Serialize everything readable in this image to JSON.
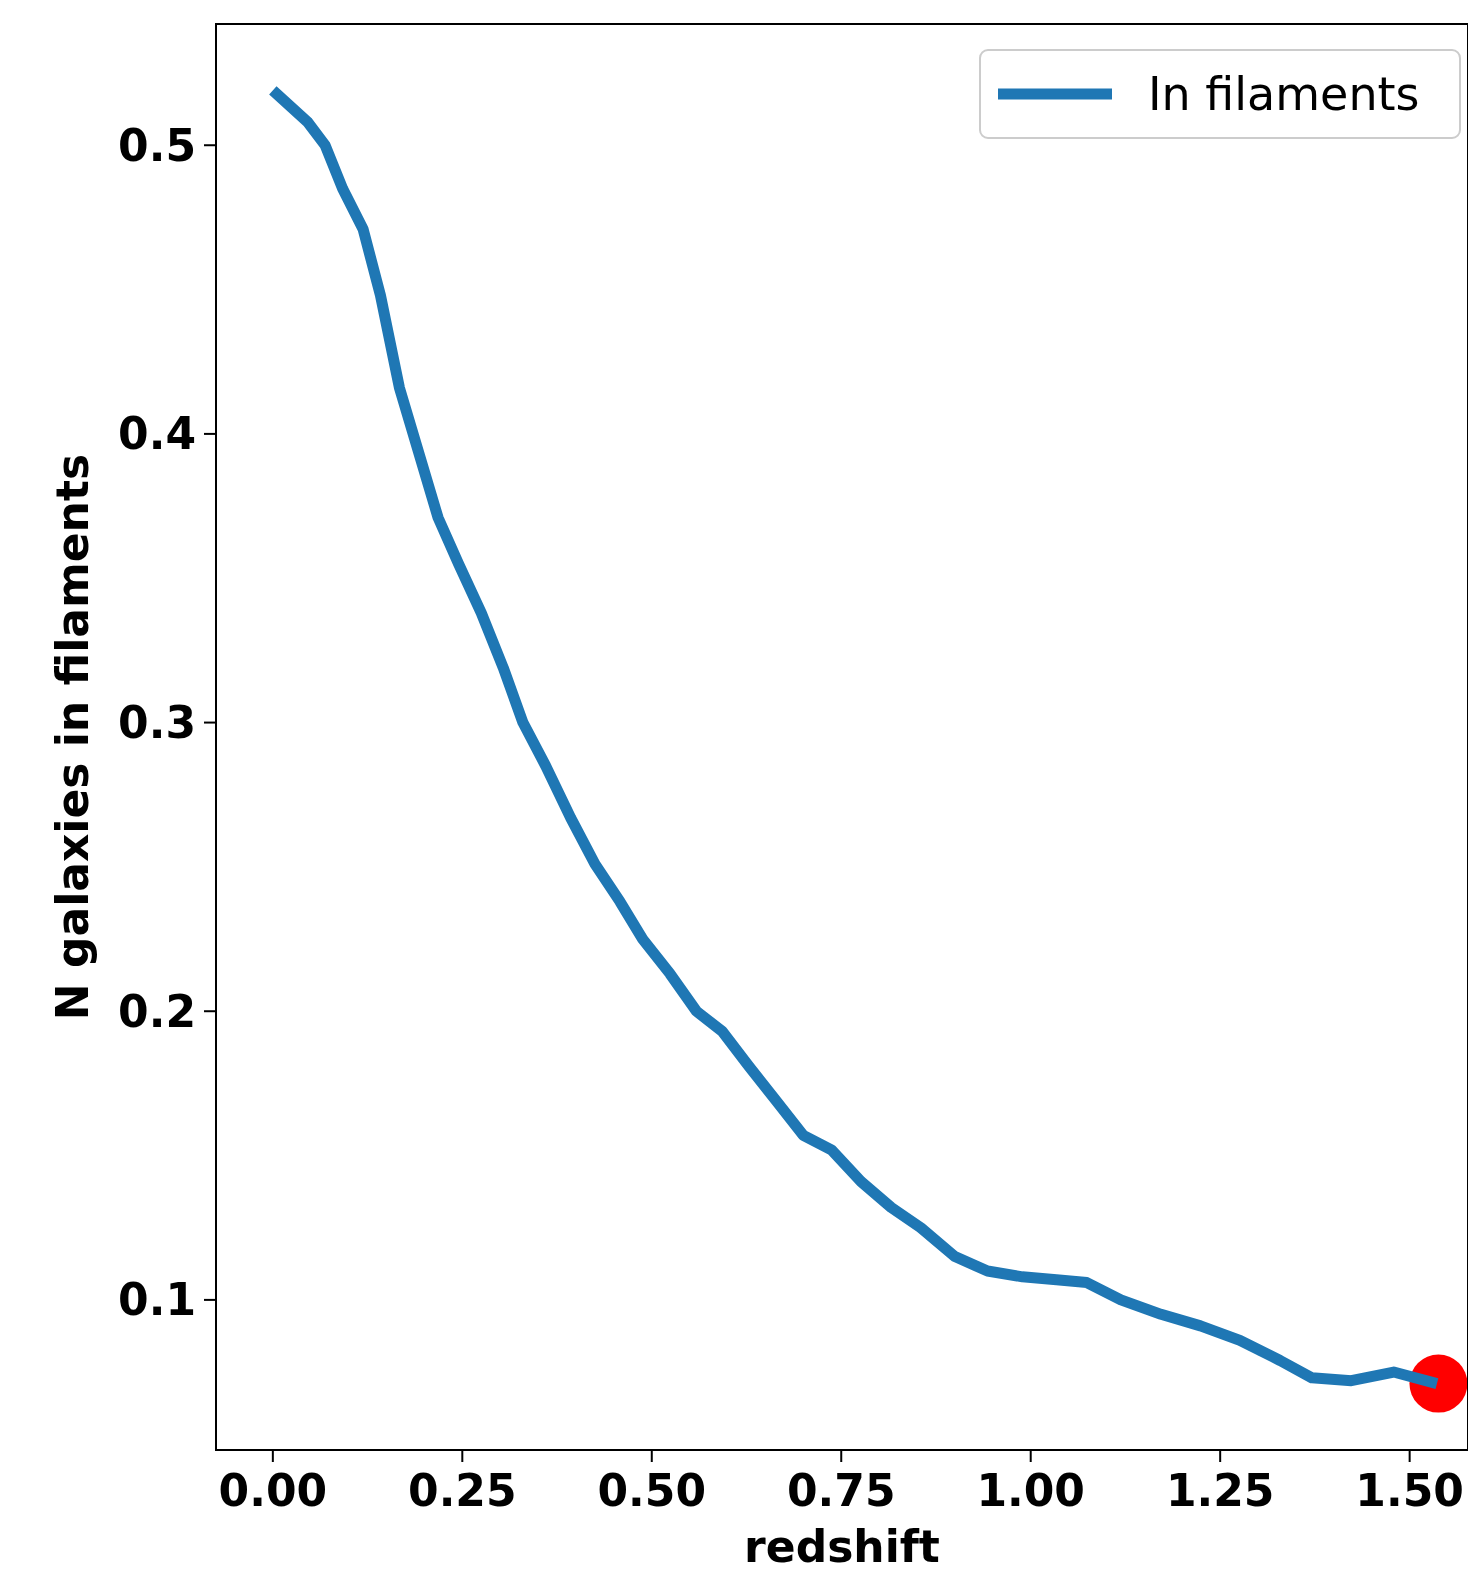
{
  "chart_data": {
    "type": "line",
    "xlabel": "redshift",
    "ylabel": "N galaxies in filaments",
    "xlim": [
      -0.075,
      1.577
    ],
    "ylim": [
      0.048,
      0.542
    ],
    "xticks": [
      {
        "value": 0,
        "label": "0.00"
      },
      {
        "value": 0.25,
        "label": "0.25"
      },
      {
        "value": 0.5,
        "label": "0.50"
      },
      {
        "value": 0.75,
        "label": "0.75"
      },
      {
        "value": 1,
        "label": "1.00"
      },
      {
        "value": 1.25,
        "label": "1.25"
      },
      {
        "value": 1.5,
        "label": "1.50"
      }
    ],
    "yticks": [
      0.1,
      0.2,
      0.3,
      0.4,
      0.5
    ],
    "grid": false,
    "legend": "top right",
    "series": [
      {
        "name": "In filaments",
        "color": "#1f77b4",
        "marker": "none",
        "x": [
          0,
          0.046,
          0.069,
          0.092,
          0.119,
          0.142,
          0.167,
          0.218,
          0.245,
          0.275,
          0.304,
          0.33,
          0.36,
          0.393,
          0.425,
          0.458,
          0.488,
          0.524,
          0.559,
          0.593,
          0.628,
          0.664,
          0.7,
          0.737,
          0.776,
          0.816,
          0.855,
          0.9,
          0.943,
          0.989,
          1.034,
          1.074,
          1.119,
          1.172,
          1.224,
          1.276,
          1.329,
          1.371,
          1.423,
          1.479,
          1.536
        ],
        "values": [
          0.519,
          0.508,
          0.5,
          0.485,
          0.471,
          0.448,
          0.416,
          0.371,
          0.355,
          0.338,
          0.319,
          0.3,
          0.285,
          0.267,
          0.251,
          0.238,
          0.225,
          0.213,
          0.2,
          0.193,
          0.181,
          0.169,
          0.157,
          0.152,
          0.141,
          0.132,
          0.125,
          0.115,
          0.11,
          0.108,
          0.107,
          0.106,
          0.1,
          0.095,
          0.091,
          0.086,
          0.079,
          0.073,
          0.072,
          0.075,
          0.071
        ]
      },
      {
        "type": "scatter",
        "color": "#ff0000",
        "marker": "circle",
        "x": [
          1.538
        ],
        "values": [
          0.071
        ]
      }
    ]
  }
}
